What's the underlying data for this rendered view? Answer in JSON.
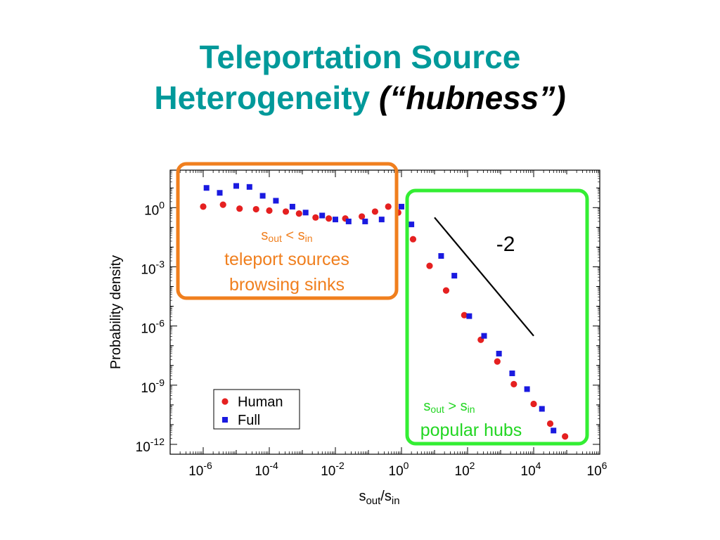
{
  "slide": {
    "title_line1": "Teleportation Source",
    "title_line2": "Heterogeneity",
    "title_emphasis": "(“hubness”)",
    "title_color": "#00999a"
  },
  "chart_data": {
    "type": "scatter",
    "xlabel": "s_out/s_in",
    "ylabel": "Probability density",
    "xscale": "log",
    "yscale": "log",
    "xlim_exp": [
      -7,
      6
    ],
    "ylim_exp": [
      -12.5,
      1.9
    ],
    "x_tick_exponents": [
      -6,
      -4,
      -2,
      0,
      2,
      4,
      6
    ],
    "y_tick_exponents": [
      0,
      -3,
      -6,
      -9,
      -12
    ],
    "series": [
      {
        "name": "Human",
        "marker": "circle",
        "color": "#e52020",
        "points": [
          [
            -6.0,
            0.05
          ],
          [
            -5.4,
            0.15
          ],
          [
            -4.9,
            -0.05
          ],
          [
            -4.4,
            -0.08
          ],
          [
            -4.0,
            -0.15
          ],
          [
            -3.5,
            -0.2
          ],
          [
            -3.1,
            -0.3
          ],
          [
            -2.6,
            -0.5
          ],
          [
            -2.2,
            -0.55
          ],
          [
            -1.7,
            -0.55
          ],
          [
            -1.2,
            -0.45
          ],
          [
            -0.8,
            -0.2
          ],
          [
            -0.4,
            0.05
          ],
          [
            -0.1,
            -0.25
          ],
          [
            0.35,
            -1.6
          ],
          [
            0.85,
            -2.95
          ],
          [
            1.35,
            -4.2
          ],
          [
            1.9,
            -5.45
          ],
          [
            2.4,
            -6.7
          ],
          [
            2.9,
            -7.8
          ],
          [
            3.4,
            -8.95
          ],
          [
            4.0,
            -9.95
          ],
          [
            4.5,
            -10.95
          ],
          [
            4.95,
            -11.6
          ]
        ]
      },
      {
        "name": "Full",
        "marker": "square",
        "color": "#1a1ae0",
        "points": [
          [
            -5.9,
            1.0
          ],
          [
            -5.5,
            0.75
          ],
          [
            -5.0,
            1.1
          ],
          [
            -4.6,
            1.05
          ],
          [
            -4.2,
            0.6
          ],
          [
            -3.8,
            0.35
          ],
          [
            -3.3,
            0.05
          ],
          [
            -2.9,
            -0.25
          ],
          [
            -2.4,
            -0.4
          ],
          [
            -2.0,
            -0.6
          ],
          [
            -1.6,
            -0.7
          ],
          [
            -1.1,
            -0.7
          ],
          [
            -0.6,
            -0.6
          ],
          [
            0.0,
            0.05
          ],
          [
            0.3,
            -0.85
          ],
          [
            1.2,
            -2.45
          ],
          [
            1.6,
            -3.45
          ],
          [
            2.05,
            -5.5
          ],
          [
            2.5,
            -6.5
          ],
          [
            2.95,
            -7.4
          ],
          [
            3.35,
            -8.4
          ],
          [
            3.8,
            -9.2
          ],
          [
            4.25,
            -10.2
          ],
          [
            4.6,
            -11.3
          ]
        ]
      }
    ],
    "reference_line": {
      "label": "-2",
      "from": [
        1.0,
        -0.5
      ],
      "to": [
        4.0,
        -6.5
      ]
    },
    "legend": {
      "placement": "bottom-left",
      "entries": [
        "Human",
        "Full"
      ]
    },
    "annotations": [
      {
        "id": "orange-box",
        "color": "#f07f1e",
        "line1_main": "s",
        "line1_sub1": "out",
        "line1_op": " < ",
        "line1_main2": "s",
        "line1_sub2": "in",
        "line2": "teleport sources",
        "line3": "browsing sinks"
      },
      {
        "id": "green-box",
        "color": "#33ee33",
        "line1_main": "s",
        "line1_sub1": "out",
        "line1_op": " > ",
        "line1_main2": "s",
        "line1_sub2": "in",
        "line2": "popular hubs"
      }
    ]
  }
}
